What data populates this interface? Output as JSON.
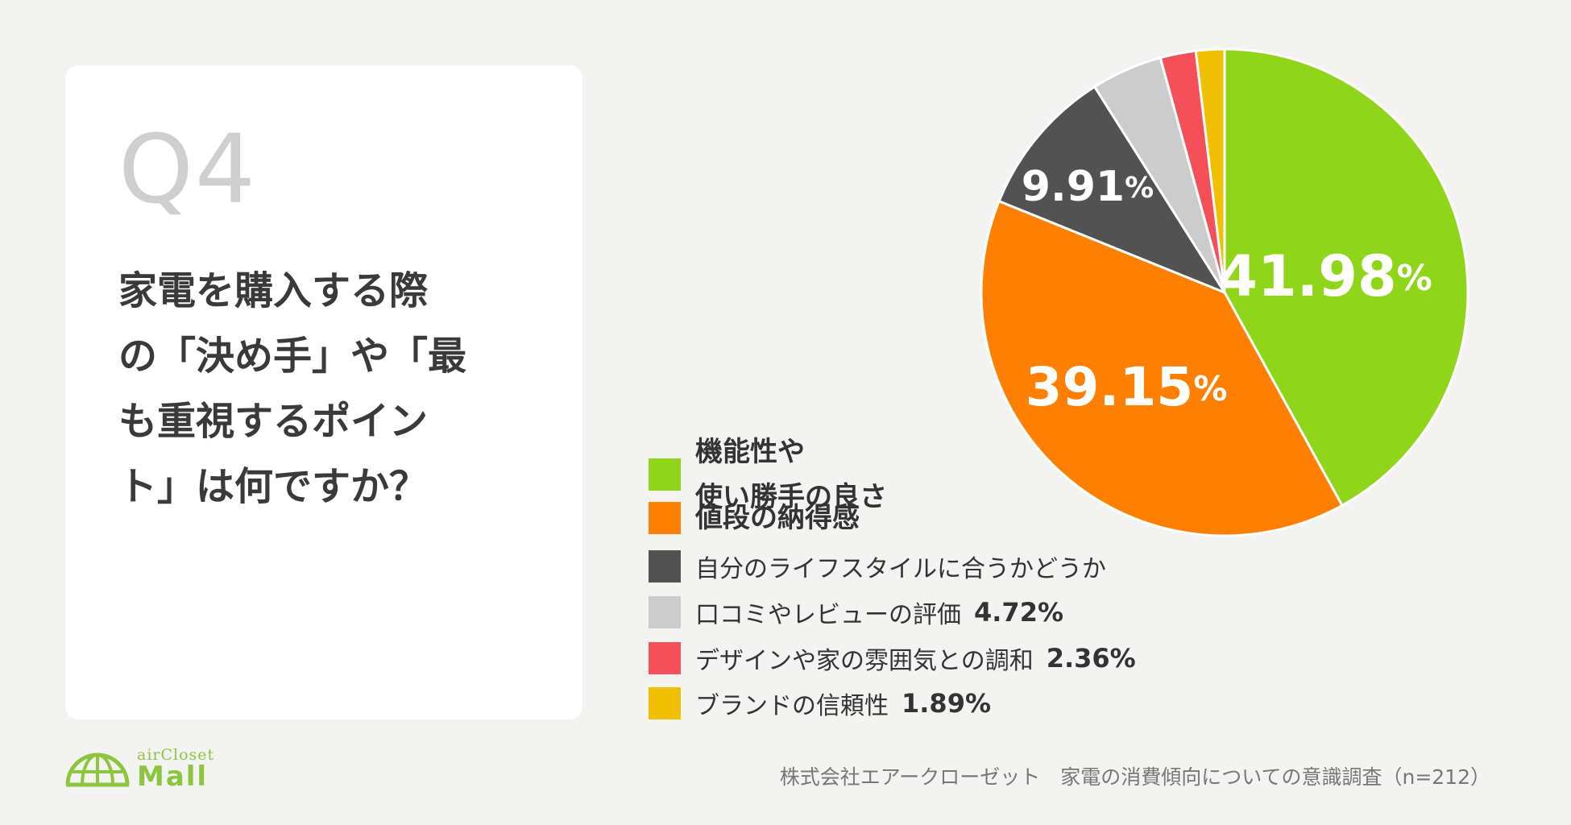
{
  "question": {
    "number": "Q4",
    "lines": [
      "家電を購入する際",
      "の「決め手」や「最",
      "も重視するポイン",
      "ト」は何ですか？"
    ]
  },
  "chart_data": {
    "type": "pie",
    "unit": "%",
    "slices": [
      {
        "label_lines": [
          "機能性や",
          "使い勝手の良さ"
        ],
        "value": 41.98,
        "color": "#8fd61a",
        "label_on_slice": "41.98",
        "legend_value": ""
      },
      {
        "label_lines": [
          "値段の納得感"
        ],
        "value": 39.15,
        "color": "#ff7f00",
        "label_on_slice": "39.15",
        "legend_value": ""
      },
      {
        "label_lines": [
          "自分のライフスタイルに合うかどうか"
        ],
        "value": 9.91,
        "color": "#525252",
        "label_on_slice": "9.91",
        "legend_value": ""
      },
      {
        "label_lines": [
          "口コミやレビューの評価"
        ],
        "value": 4.72,
        "color": "#cccccc",
        "label_on_slice": "",
        "legend_value": "4.72%"
      },
      {
        "label_lines": [
          "デザインや家の雰囲気との調和"
        ],
        "value": 2.36,
        "color": "#f5505a",
        "label_on_slice": "",
        "legend_value": "2.36%"
      },
      {
        "label_lines": [
          "ブランドの信頼性"
        ],
        "value": 1.89,
        "color": "#f0c000",
        "label_on_slice": "",
        "legend_value": "1.89%"
      }
    ]
  },
  "logo": {
    "top": "airCloset",
    "bottom": "Mall"
  },
  "source": "株式会社エアークローゼット　家電の消費傾向についての意識調査（n=212）"
}
